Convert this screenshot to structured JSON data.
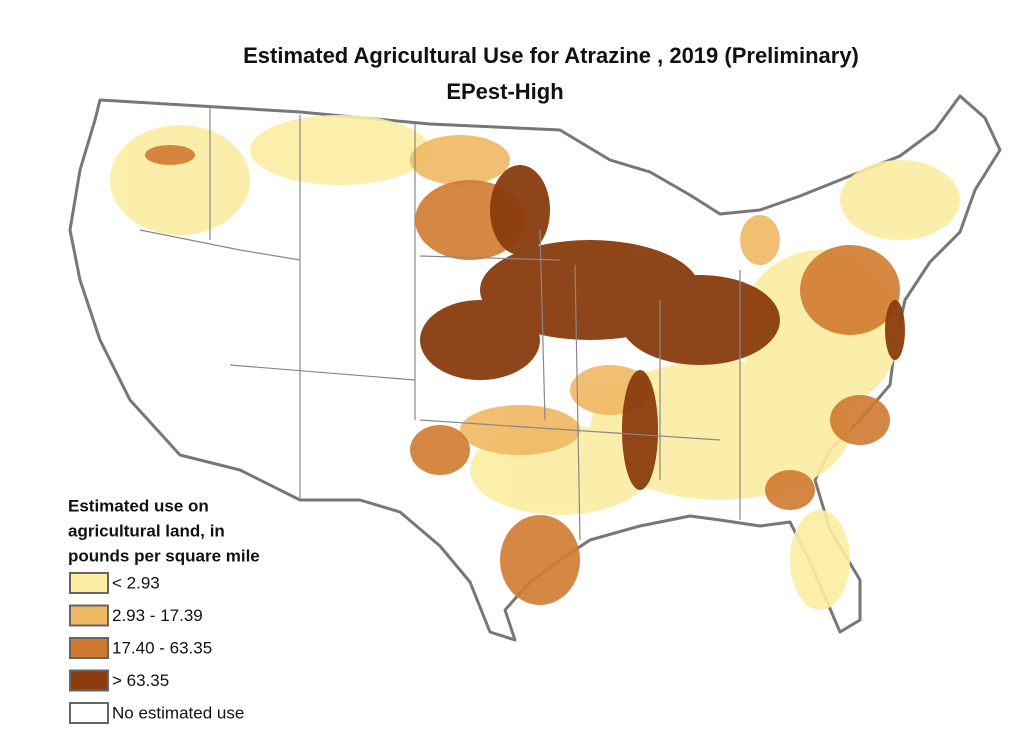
{
  "title": "Estimated Agricultural Use for Atrazine , 2019 (Preliminary)",
  "subtitle": "EPest-High",
  "legend": {
    "title_lines": [
      "Estimated use on",
      "agricultural land, in",
      "pounds per square mile"
    ],
    "items": [
      {
        "label": "< 2.93",
        "color": "#fbeda2"
      },
      {
        "label": "2.93 - 17.39",
        "color": "#efb862"
      },
      {
        "label": "17.40 - 63.35",
        "color": "#d07a30"
      },
      {
        "label": "> 63.35",
        "color": "#8a3c0e"
      },
      {
        "label": "No estimated use",
        "color": "#ffffff"
      }
    ]
  }
}
